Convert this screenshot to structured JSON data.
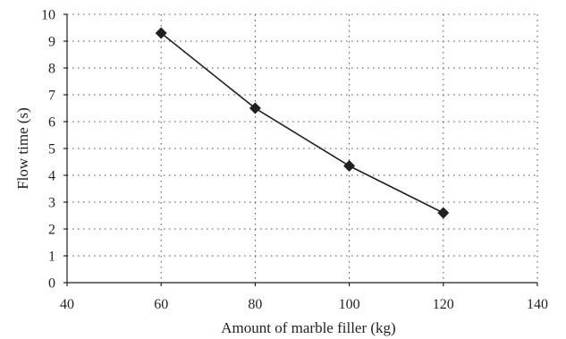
{
  "chart_data": {
    "type": "line",
    "title": "",
    "xlabel": "Amount of marble filler (kg)",
    "ylabel": "Flow time (s)",
    "xlim": [
      40,
      140
    ],
    "ylim": [
      0,
      10
    ],
    "x_ticks": [
      "40",
      "60",
      "80",
      "100",
      "120",
      "140"
    ],
    "y_ticks": [
      "0",
      "1",
      "2",
      "3",
      "4",
      "5",
      "6",
      "7",
      "8",
      "9",
      "10"
    ],
    "grid": true,
    "legend": "none",
    "marker": "diamond",
    "color": "#231f20",
    "series": [
      {
        "x": [
          60,
          80,
          100,
          120
        ],
        "y": [
          9.3,
          6.5,
          4.35,
          2.6
        ]
      }
    ]
  }
}
